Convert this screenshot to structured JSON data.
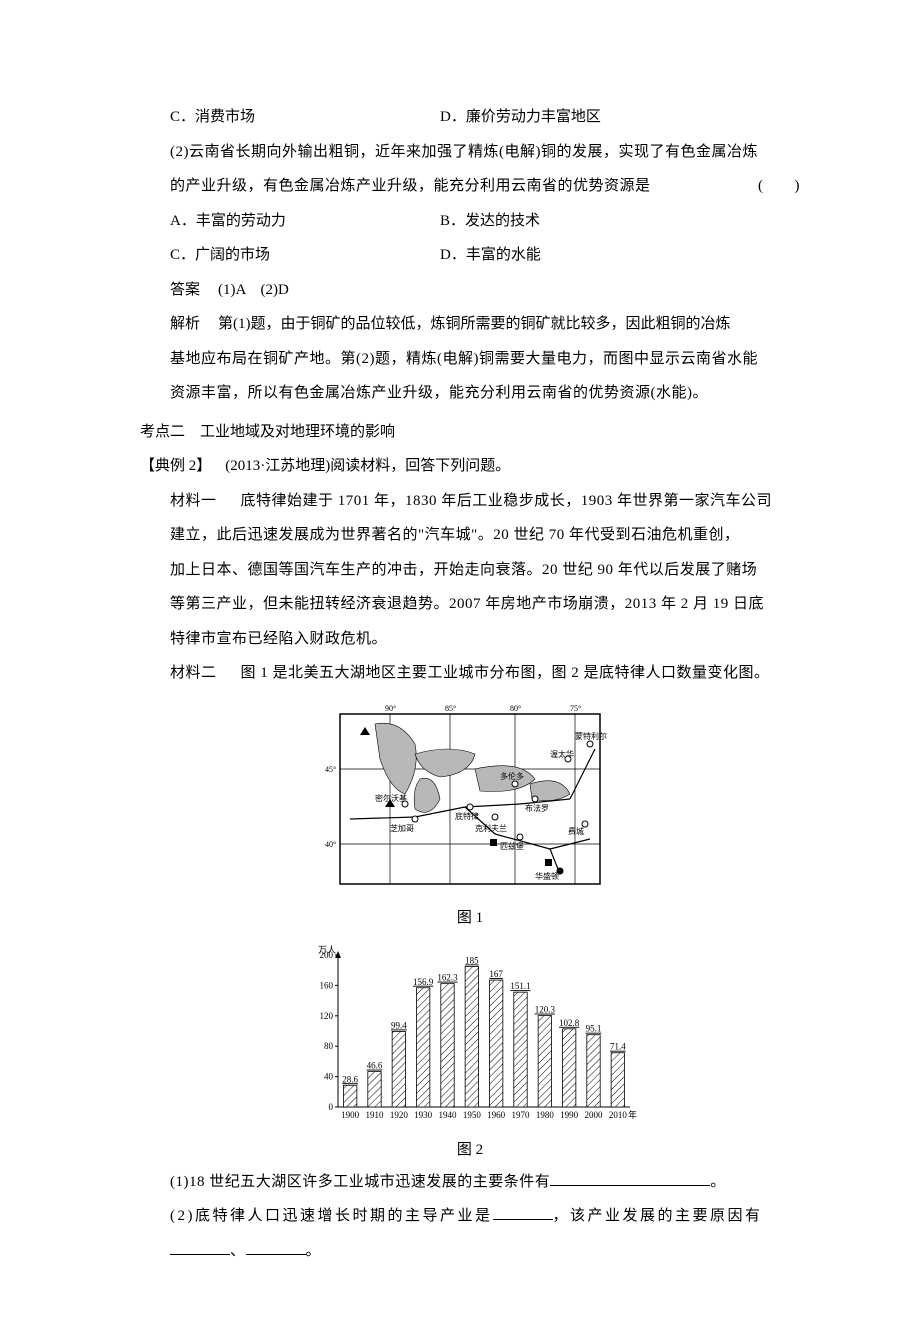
{
  "q1": {
    "options_row1": {
      "c": "C．消费市场",
      "d": "D．廉价劳动力丰富地区"
    },
    "q2_stem_l1": "(2)云南省长期向外输出粗铜，近年来加强了精炼(电解)铜的发展，实现了有色金属冶炼",
    "q2_stem_l2": "的产业升级，有色金属冶炼产业升级，能充分利用云南省的优势资源是",
    "paren": "(　　)",
    "options_row2": {
      "a": "A．丰富的劳动力",
      "b": "B．发达的技术"
    },
    "options_row3": {
      "c": "C．广阔的市场",
      "d": "D．丰富的水能"
    },
    "answer_label": "答案",
    "answer_text": "(1)A　(2)D",
    "explain_label": "解析",
    "explain_l1": "第(1)题，由于铜矿的品位较低，炼铜所需要的铜矿就比较多，因此粗铜的冶炼",
    "explain_l2": "基地应布局在铜矿产地。第(2)题，精炼(电解)铜需要大量电力，而图中显示云南省水能",
    "explain_l3": "资源丰富，所以有色金属冶炼产业升级，能充分利用云南省的优势资源(水能)。"
  },
  "section2": {
    "heading": "考点二　工业地域及对地理环境的影响",
    "example_label": "【典例 2】",
    "example_source": "(2013·江苏地理)阅读材料，回答下列问题。",
    "m1_label": "材料一",
    "m1_l1": "底特律始建于 1701 年，1830 年后工业稳步成长，1903 年世界第一家汽车公司",
    "m1_l2": "建立，此后迅速发展成为世界著名的\"汽车城\"。20 世纪 70 年代受到石油危机重创，",
    "m1_l3": "加上日本、德国等国汽车生产的冲击，开始走向衰落。20 世纪 90 年代以后发展了赌场",
    "m1_l4": "等第三产业，但未能扭转经济衰退趋势。2007 年房地产市场崩溃，2013 年 2 月 19 日底",
    "m1_l5": "特律市宣布已经陷入财政危机。",
    "m2_label": "材料二",
    "m2_text": "图 1 是北美五大湖地区主要工业城市分布图，图 2 是底特律人口数量变化图。"
  },
  "map": {
    "caption": "图 1",
    "lon_labels": [
      "90°",
      "85°",
      "80°",
      "75°"
    ],
    "lat_labels": [
      "45°",
      "40°"
    ],
    "cities": {
      "montreal": "蒙特利尔",
      "ottawa": "渥太华",
      "toronto": "多伦多",
      "milwaukee": "密尔沃基",
      "chicago": "芝加哥",
      "detroit": "底特律",
      "cleveland": "克利夫兰",
      "buffalo": "布法罗",
      "pittsburgh": "匹兹堡",
      "washington": "华盛顿",
      "ny_area": "费城"
    },
    "colors": {
      "land": "#ffffff",
      "water": "#b8b8b8",
      "border": "#000000",
      "grid": "#000000",
      "rail": "#000000"
    }
  },
  "chart": {
    "caption": "图 2",
    "y_unit": "万人",
    "y_ticks": [
      0,
      40,
      80,
      120,
      160,
      200
    ],
    "y_max": 200,
    "x_labels": [
      "1900",
      "1910",
      "1920",
      "1930",
      "1940",
      "1950",
      "1960",
      "1970",
      "1980",
      "1990",
      "2000",
      "2010"
    ],
    "x_suffix": "年",
    "values": [
      28.6,
      46.6,
      99.4,
      156.9,
      162.3,
      185.0,
      167,
      151.1,
      120.3,
      102.8,
      95.1,
      71.4
    ],
    "colors": {
      "axis": "#000000",
      "bar_fill": "#ffffff",
      "bar_stroke": "#000000",
      "hatch": "#000000",
      "text": "#000000",
      "bg": "#ffffff"
    },
    "bar_width_ratio": 0.55,
    "font_size_labels": 9,
    "font_size_values": 9,
    "font_size_axis": 9
  },
  "questions": {
    "q1_text_a": "(1)18 世纪五大湖区许多工业城市迅速发展的主要条件有",
    "q1_text_b": "。",
    "q2_text_a": "(2)底特律人口迅速增长时期的主导产业是",
    "q2_text_b": "，该产业发展的主要原因有",
    "q2_line2_a": "、",
    "q2_line2_b": "。"
  }
}
